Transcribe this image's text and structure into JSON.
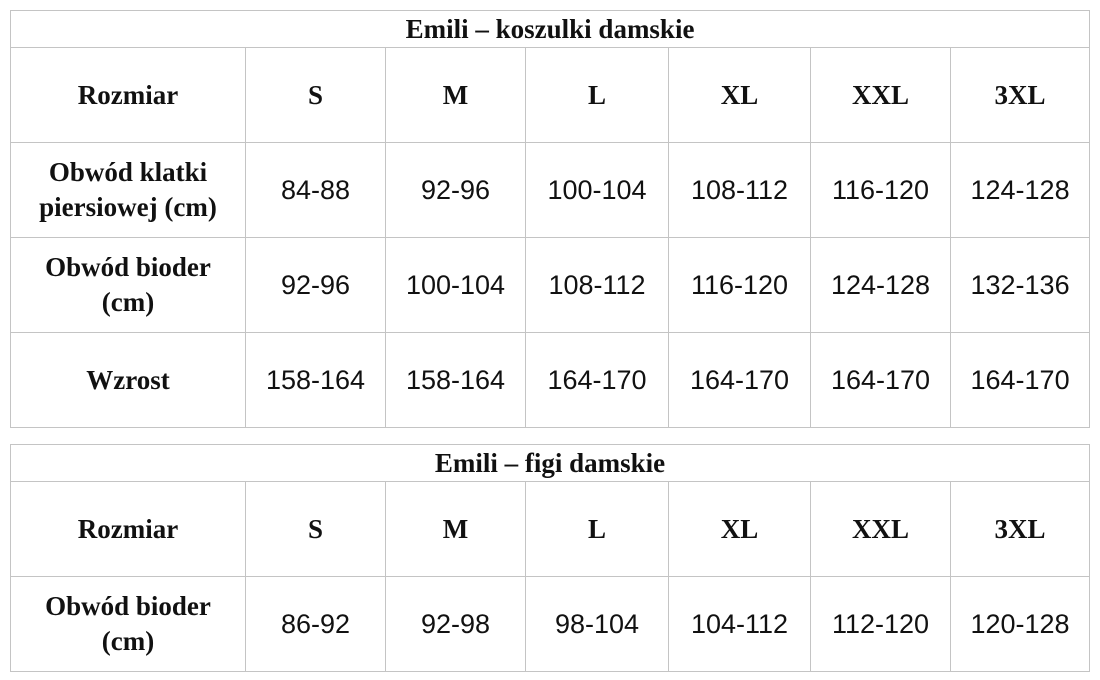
{
  "table_shirts": {
    "title": "Emili – koszulki damskie",
    "header_label": "Rozmiar",
    "sizes": [
      "S",
      "M",
      "L",
      "XL",
      "XXL",
      "3XL"
    ],
    "rows": [
      {
        "label": "Obwód klatki piersiowej (cm)",
        "values": [
          "84-88",
          "92-96",
          "100-104",
          "108-112",
          "116-120",
          "124-128"
        ]
      },
      {
        "label": "Obwód bioder (cm)",
        "values": [
          "92-96",
          "100-104",
          "108-112",
          "116-120",
          "124-128",
          "132-136"
        ]
      },
      {
        "label": "Wzrost",
        "values": [
          "158-164",
          "158-164",
          "164-170",
          "164-170",
          "164-170",
          "164-170"
        ]
      }
    ]
  },
  "table_briefs": {
    "title": "Emili – figi damskie",
    "header_label": "Rozmiar",
    "sizes": [
      "S",
      "M",
      "L",
      "XL",
      "XXL",
      "3XL"
    ],
    "rows": [
      {
        "label": "Obwód bioder (cm)",
        "values": [
          "86-92",
          "92-98",
          "98-104",
          "104-112",
          "112-120",
          "120-128"
        ]
      }
    ]
  }
}
